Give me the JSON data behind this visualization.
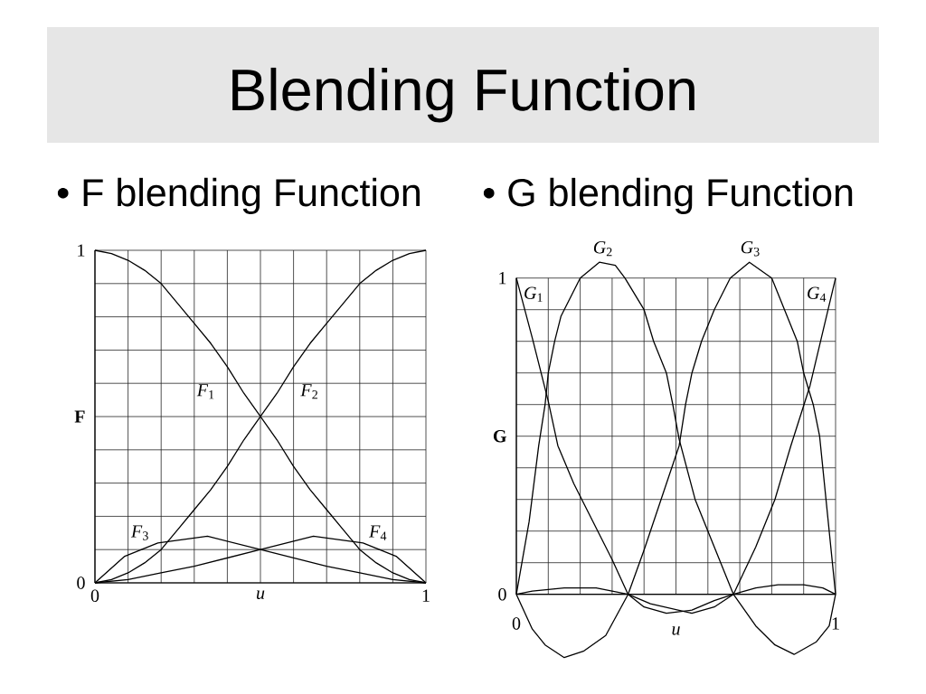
{
  "chart_data": [
    {
      "type": "line",
      "title": "Blending Function",
      "subtitle": "• F blending Function",
      "xlabel": "u",
      "ylabel": "F",
      "xlim": [
        0,
        1
      ],
      "ylim": [
        0,
        1
      ],
      "xticks": [
        0,
        {
          "value": 0.1,
          "label": null
        },
        {
          "value": 0.2,
          "label": null
        },
        {
          "value": 0.3,
          "label": null
        },
        {
          "value": 0.4,
          "label": null
        },
        {
          "value": 0.5,
          "label": null
        },
        {
          "value": 0.6,
          "label": null
        },
        {
          "value": 0.7,
          "label": null
        },
        {
          "value": 0.8,
          "label": null
        },
        {
          "value": 0.9,
          "label": null
        },
        1
      ],
      "yticks": [
        0,
        {
          "value": 0.1,
          "label": null
        },
        {
          "value": 0.2,
          "label": null
        },
        {
          "value": 0.3,
          "label": null
        },
        {
          "value": 0.4,
          "label": null
        },
        {
          "value": 0.5,
          "label": null
        },
        {
          "value": 0.6,
          "label": null
        },
        {
          "value": 0.7,
          "label": null
        },
        {
          "value": 0.8,
          "label": null
        },
        {
          "value": 0.9,
          "label": null
        },
        1
      ],
      "grid": true,
      "series": [
        {
          "name": "*F*$_{1}$",
          "color": "#000000",
          "x": [
            0,
            0.05,
            0.1,
            0.15,
            0.2,
            0.25,
            0.3,
            0.35,
            0.4,
            0.45,
            0.5,
            0.55,
            0.6,
            0.65,
            0.7,
            0.75,
            0.8,
            0.85,
            0.9,
            0.95,
            1
          ],
          "values": [
            1,
            0.99,
            0.97,
            0.94,
            0.9,
            0.84,
            0.78,
            0.72,
            0.65,
            0.57,
            0.5,
            0.43,
            0.35,
            0.28,
            0.22,
            0.16,
            0.1,
            0.06,
            0.03,
            0.01,
            0
          ]
        },
        {
          "name": "*F*$_{2}$",
          "color": "#000000",
          "x": [
            0,
            0.05,
            0.1,
            0.15,
            0.2,
            0.25,
            0.3,
            0.35,
            0.4,
            0.45,
            0.5,
            0.55,
            0.6,
            0.65,
            0.7,
            0.75,
            0.8,
            0.85,
            0.9,
            0.95,
            1
          ],
          "values": [
            0,
            0.01,
            0.03,
            0.06,
            0.1,
            0.16,
            0.22,
            0.28,
            0.35,
            0.43,
            0.5,
            0.57,
            0.65,
            0.72,
            0.78,
            0.84,
            0.9,
            0.94,
            0.97,
            0.99,
            1
          ]
        },
        {
          "name": "*F*$_{3}$",
          "color": "#000000",
          "x": [
            0,
            0.09,
            0.19,
            0.34,
            0.5,
            0.7,
            0.8,
            0.9,
            1
          ],
          "values": [
            0,
            0.08,
            0.12,
            0.14,
            0.1,
            0.05,
            0.03,
            0.01,
            0
          ]
        },
        {
          "name": "*F*$_{4}$",
          "color": "#000000",
          "x": [
            0,
            0.1,
            0.2,
            0.3,
            0.5,
            0.66,
            0.81,
            0.91,
            1
          ],
          "values": [
            0,
            0.01,
            0.03,
            0.05,
            0.1,
            0.14,
            0.12,
            0.08,
            0
          ]
        }
      ]
    },
    {
      "type": "line",
      "subtitle": "• G blending Function",
      "xlabel": "u",
      "ylabel": "G",
      "xlim": [
        0,
        1
      ],
      "ylim": [
        -0.2,
        1.06
      ],
      "xticks": [
        0,
        {
          "value": 0.1,
          "label": null
        },
        {
          "value": 0.2,
          "label": null
        },
        {
          "value": 0.3,
          "label": null
        },
        {
          "value": 0.4,
          "label": null
        },
        {
          "value": 0.5,
          "label": null
        },
        {
          "value": 0.6,
          "label": null
        },
        {
          "value": 0.7,
          "label": null
        },
        {
          "value": 0.8,
          "label": null
        },
        {
          "value": 0.9,
          "label": null
        },
        1
      ],
      "yticks": [
        0,
        {
          "value": 0.1,
          "label": null
        },
        {
          "value": 0.2,
          "label": null
        },
        {
          "value": 0.3,
          "label": null
        },
        {
          "value": 0.4,
          "label": null
        },
        {
          "value": 0.5,
          "label": null
        },
        {
          "value": 0.6,
          "label": null
        },
        {
          "value": 0.7,
          "label": null
        },
        {
          "value": 0.8,
          "label": null
        },
        {
          "value": 0.9,
          "label": null
        },
        1
      ],
      "grid": true,
      "series": [
        {
          "name": "*G*$_{1}$",
          "color": "#000000",
          "x": [
            0,
            0.05,
            0.1,
            0.13,
            0.18,
            0.24,
            0.3,
            0.35,
            0.4,
            0.47,
            0.55,
            0.62,
            0.68,
            0.75,
            0.82,
            0.9,
            0.96,
            1
          ],
          "values": [
            1,
            0.81,
            0.61,
            0.47,
            0.35,
            0.23,
            0.11,
            0,
            -0.04,
            -0.06,
            -0.05,
            -0.02,
            0,
            0.02,
            0.03,
            0.03,
            0.02,
            0
          ]
        },
        {
          "name": "*G*$_{2}$",
          "color": "#000000",
          "x": [
            0,
            0.04,
            0.07,
            0.09,
            0.1,
            0.12,
            0.14,
            0.2,
            0.26,
            0.31,
            0.34,
            0.4,
            0.43,
            0.47,
            0.49,
            0.51,
            0.56,
            0.62,
            0.68,
            0.75,
            0.81,
            0.87,
            0.94,
            0.98,
            1
          ],
          "values": [
            0,
            0.23,
            0.47,
            0.6,
            0.7,
            0.8,
            0.88,
            1,
            1.05,
            1.04,
            1,
            0.9,
            0.8,
            0.7,
            0.6,
            0.49,
            0.3,
            0.15,
            0,
            -0.1,
            -0.16,
            -0.19,
            -0.15,
            -0.1,
            0
          ]
        },
        {
          "name": "*G*$_{3}$",
          "color": "#000000",
          "x": [
            0,
            0.05,
            0.09,
            0.15,
            0.21,
            0.28,
            0.35,
            0.4,
            0.45,
            0.51,
            0.53,
            0.55,
            0.58,
            0.62,
            0.67,
            0.73,
            0.8,
            0.84,
            0.88,
            0.9,
            0.93,
            0.95,
            1
          ],
          "values": [
            0,
            -0.11,
            -0.16,
            -0.2,
            -0.18,
            -0.13,
            0,
            0.14,
            0.29,
            0.47,
            0.6,
            0.7,
            0.8,
            0.9,
            1,
            1.05,
            1,
            0.9,
            0.8,
            0.7,
            0.6,
            0.5,
            0
          ]
        },
        {
          "name": "*G*$_{4}$",
          "color": "#000000",
          "x": [
            0,
            0.05,
            0.15,
            0.25,
            0.35,
            0.42,
            0.55,
            0.62,
            0.68,
            0.75,
            0.81,
            0.86,
            0.92,
            1
          ],
          "values": [
            0,
            0.01,
            0.02,
            0.02,
            0,
            -0.03,
            -0.06,
            -0.04,
            0,
            0.15,
            0.3,
            0.47,
            0.66,
            1
          ]
        }
      ]
    }
  ]
}
